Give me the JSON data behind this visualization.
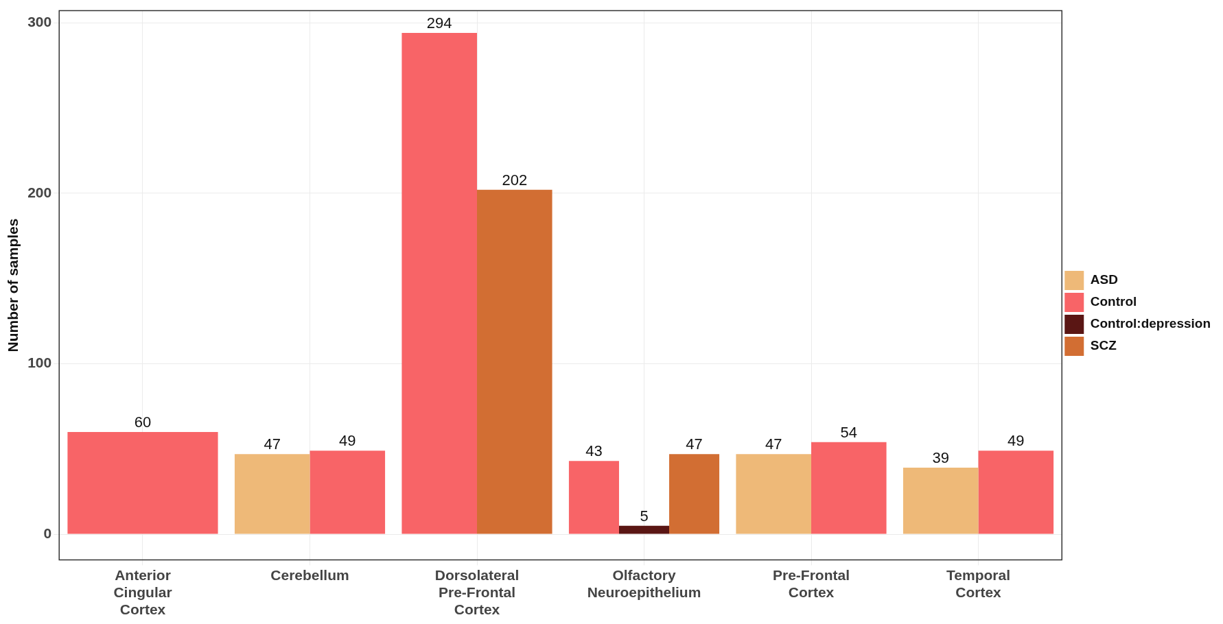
{
  "chart_data": {
    "type": "bar",
    "ylabel": "Number of samples",
    "categories": [
      "Anterior Cingular Cortex",
      "Cerebellum",
      "Dorsolateral Pre-Frontal Cortex",
      "Olfactory Neuroepithelium",
      "Pre-Frontal Cortex",
      "Temporal Cortex"
    ],
    "series": [
      {
        "name": "ASD",
        "color": "#eeb978",
        "values": [
          null,
          47,
          null,
          null,
          47,
          39
        ]
      },
      {
        "name": "Control",
        "color": "#f86467",
        "values": [
          60,
          49,
          294,
          43,
          54,
          49
        ]
      },
      {
        "name": "Control:depression",
        "color": "#5a1614",
        "values": [
          null,
          null,
          null,
          5,
          null,
          null
        ]
      },
      {
        "name": "SCZ",
        "color": "#d26e33",
        "values": [
          null,
          null,
          202,
          47,
          null,
          null
        ]
      }
    ],
    "ylim": [
      -15,
      307
    ],
    "yticks": [
      0,
      100,
      200,
      300
    ],
    "grid": true,
    "legend": "right",
    "data_labels": true
  }
}
